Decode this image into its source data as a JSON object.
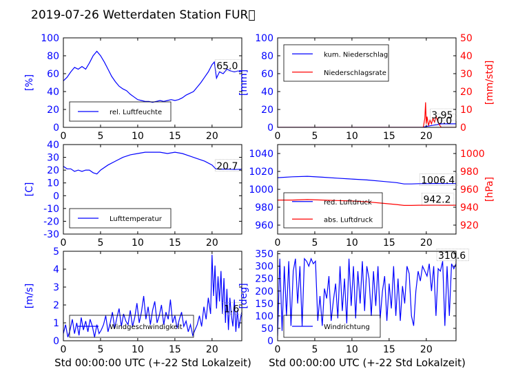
{
  "figure": {
    "title": "2019-07-26 Wetterdaten Station FUR\u0000",
    "xlabel": "Std 00:00:00 UTC (+-22 Std Lokalzeit)"
  },
  "colors": {
    "blue": "#0000ff",
    "red": "#ff0000",
    "axis": "#000000"
  },
  "chart_data": [
    {
      "type": "line",
      "panel": "humidity",
      "ylabel": "[%]",
      "xlim": [
        0,
        24
      ],
      "ylim": [
        0,
        100
      ],
      "xticks": [
        0,
        5,
        10,
        15,
        20
      ],
      "yticks": [
        0,
        20,
        40,
        60,
        80,
        100
      ],
      "legend": "lower-left",
      "annotations": [
        {
          "text": "65.0",
          "x": 20.5,
          "y": 65
        }
      ],
      "series": [
        {
          "name": "rel. Luftfeuchte",
          "color": "#0000ff",
          "x": [
            0,
            0.5,
            1,
            1.5,
            2,
            2.5,
            3,
            3.5,
            4,
            4.5,
            5,
            5.5,
            6,
            6.5,
            7,
            7.5,
            8,
            8.5,
            9,
            9.5,
            10,
            10.5,
            11,
            11.5,
            12,
            12.5,
            13,
            13.5,
            14,
            14.5,
            15,
            15.5,
            16,
            16.5,
            17,
            17.5,
            18,
            18.5,
            19,
            19.5,
            20,
            20.3,
            20.6,
            21,
            21.5,
            22,
            22.5,
            23,
            23.5,
            24
          ],
          "y": [
            52,
            56,
            62,
            67,
            65,
            68,
            65,
            72,
            80,
            85,
            80,
            73,
            65,
            57,
            51,
            46,
            43,
            41,
            37,
            34,
            31,
            30,
            29,
            29,
            28,
            29,
            30,
            29,
            30,
            31,
            30,
            31,
            33,
            36,
            38,
            40,
            45,
            50,
            56,
            62,
            70,
            73,
            55,
            62,
            60,
            65,
            63,
            62,
            63,
            62
          ]
        }
      ]
    },
    {
      "type": "line",
      "panel": "precipitation",
      "ylabel": "[mm]",
      "y2label": "[mm/std]",
      "xlim": [
        0,
        24
      ],
      "ylim": [
        0,
        100
      ],
      "y2lim": [
        0,
        50
      ],
      "xticks": [
        0,
        5,
        10,
        15,
        20
      ],
      "yticks": [
        0,
        20,
        40,
        60,
        80,
        100
      ],
      "y2ticks": [
        0,
        10,
        20,
        30,
        40,
        50
      ],
      "legend": "upper-left",
      "annotations": [
        {
          "text": "3.95",
          "x": 20.6,
          "y": 10
        },
        {
          "text": "0.0",
          "x": 21.3,
          "y": 4
        }
      ],
      "series": [
        {
          "name": "kum. Niederschlag",
          "color": "#0000ff",
          "axis": "left",
          "x": [
            0,
            19.5,
            20,
            21,
            22,
            23,
            24
          ],
          "y": [
            0,
            0,
            1,
            2.5,
            3.95,
            3.95,
            3.95
          ]
        },
        {
          "name": "Niederschlagsrate",
          "color": "#ff0000",
          "axis": "right",
          "x": [
            0,
            19.6,
            19.8,
            19.9,
            20.0,
            20.1,
            20.3,
            20.5,
            20.7,
            20.9,
            21.1,
            21.3,
            21.5,
            21.7,
            22,
            24
          ],
          "y": [
            0,
            0,
            5,
            14,
            2,
            6,
            1,
            4,
            2,
            5,
            3,
            6,
            4,
            2,
            0,
            0
          ]
        }
      ]
    },
    {
      "type": "line",
      "panel": "temperature",
      "ylabel": "[C]",
      "xlim": [
        0,
        24
      ],
      "ylim": [
        -30,
        40
      ],
      "xticks": [
        0,
        5,
        10,
        15,
        20
      ],
      "yticks": [
        -30,
        -20,
        -10,
        0,
        10,
        20,
        30,
        40
      ],
      "legend": "lower-left",
      "annotations": [
        {
          "text": "20.7",
          "x": 20.5,
          "y": 20.7
        }
      ],
      "series": [
        {
          "name": "Lufttemperatur",
          "color": "#0000ff",
          "x": [
            0,
            0.5,
            1,
            1.5,
            2,
            2.5,
            3,
            3.5,
            4,
            4.5,
            5,
            6,
            7,
            8,
            9,
            10,
            11,
            12,
            13,
            14,
            15,
            16,
            17,
            18,
            19,
            20,
            20.5,
            21,
            22,
            23,
            24
          ],
          "y": [
            23,
            21,
            21,
            19,
            20,
            19,
            20,
            20,
            18,
            17,
            20,
            24,
            27,
            30,
            32,
            33,
            34,
            34,
            34,
            33,
            34,
            33,
            31,
            29,
            27,
            24,
            21,
            20.7,
            20.8,
            20.5,
            20.7
          ]
        }
      ]
    },
    {
      "type": "line",
      "panel": "pressure",
      "ylabel": "",
      "y2label": "[hPa]",
      "xlim": [
        0,
        24
      ],
      "ylim": [
        950,
        1050
      ],
      "y2lim": [
        910,
        1010
      ],
      "xticks": [
        0,
        5,
        10,
        15,
        20
      ],
      "yticks": [
        960,
        980,
        1000,
        1020,
        1040
      ],
      "y2ticks": [
        920,
        940,
        960,
        980,
        1000
      ],
      "legend": "lower-left",
      "annotations": [
        {
          "text": "1006.4",
          "x": 19.2,
          "y": 1006.4
        },
        {
          "text": "942.2",
          "x": 19.5,
          "y": 985
        }
      ],
      "series": [
        {
          "name": "red. Luftdruck",
          "color": "#0000ff",
          "axis": "left",
          "x": [
            0,
            2,
            4,
            6,
            8,
            10,
            12,
            14,
            16,
            17,
            18,
            19,
            20,
            21,
            22,
            23,
            24
          ],
          "y": [
            1013,
            1014,
            1014.5,
            1013.5,
            1012.5,
            1011.5,
            1010.5,
            1009,
            1007.5,
            1006,
            1006,
            1006.3,
            1006.3,
            1006.5,
            1006.4,
            1006.4,
            1006.4
          ]
        },
        {
          "name": "abs. Luftdruck",
          "color": "#ff0000",
          "axis": "right",
          "x": [
            0,
            2,
            4,
            6,
            8,
            10,
            12,
            14,
            16,
            17,
            18,
            19,
            20,
            21,
            22,
            23,
            24
          ],
          "y": [
            948,
            948,
            948.5,
            948,
            947.5,
            947,
            946,
            944.5,
            943,
            942,
            942,
            942.2,
            942.2,
            942.3,
            942.2,
            942.2,
            942.2
          ]
        }
      ]
    },
    {
      "type": "line",
      "panel": "windspeed",
      "ylabel": "[m/s]",
      "xlim": [
        0,
        24
      ],
      "ylim": [
        0,
        5
      ],
      "xticks": [
        0,
        5,
        10,
        15,
        20
      ],
      "yticks": [
        0,
        1,
        2,
        3,
        4,
        5
      ],
      "legend": "lower-left",
      "annotations": [
        {
          "text": "1.6",
          "x": 21.5,
          "y": 1.6
        }
      ],
      "series": [
        {
          "name": "Windgeschwindigkeit",
          "color": "#0000ff",
          "x": [
            0,
            0.3,
            0.6,
            0.9,
            1.2,
            1.5,
            1.8,
            2.1,
            2.4,
            2.7,
            3,
            3.3,
            3.6,
            3.9,
            4.2,
            4.5,
            4.8,
            5.1,
            5.4,
            5.7,
            6,
            6.3,
            6.6,
            6.9,
            7.2,
            7.5,
            7.8,
            8.1,
            8.4,
            8.7,
            9,
            9.3,
            9.6,
            9.9,
            10.2,
            10.5,
            10.8,
            11.1,
            11.4,
            11.7,
            12,
            12.3,
            12.6,
            12.9,
            13.2,
            13.5,
            13.8,
            14.1,
            14.4,
            14.7,
            15,
            15.3,
            15.6,
            15.9,
            16.2,
            16.5,
            16.8,
            17.1,
            17.4,
            17.7,
            18,
            18.3,
            18.6,
            18.9,
            19.2,
            19.5,
            19.8,
            20,
            20.2,
            20.4,
            20.6,
            20.8,
            21,
            21.2,
            21.4,
            21.6,
            21.8,
            22,
            22.2,
            22.4,
            22.6,
            22.8,
            23,
            23.2,
            23.4,
            23.6,
            23.8,
            24
          ],
          "y": [
            0.4,
            0.9,
            0.2,
            0.6,
            1.2,
            0.4,
            1.0,
            0.3,
            1.3,
            0.6,
            1.1,
            0.5,
            1.2,
            0.8,
            0.2,
            0.9,
            0.4,
            0.6,
            0.9,
            1.4,
            0.5,
            1.0,
            1.6,
            0.7,
            1.3,
            1.8,
            0.8,
            1.5,
            1.1,
            0.9,
            1.7,
            0.8,
            1.3,
            2.1,
            1.0,
            1.6,
            2.5,
            1.2,
            1.9,
            0.9,
            1.7,
            2.2,
            1.0,
            1.4,
            2.0,
            0.9,
            1.6,
            1.2,
            2.3,
            1.0,
            1.4,
            0.7,
            1.2,
            1.6,
            0.8,
            1.1,
            0.5,
            0.9,
            0.3,
            0.6,
            0.9,
            1.4,
            0.8,
            1.9,
            1.2,
            2.4,
            1.5,
            4.8,
            2.5,
            4.2,
            1.8,
            3.6,
            2.2,
            3.9,
            1.5,
            3.5,
            1.0,
            2.9,
            0.6,
            2.4,
            1.4,
            0.8,
            2.3,
            0.5,
            1.7,
            0.7,
            1.2,
            1.6
          ]
        }
      ]
    },
    {
      "type": "line",
      "panel": "winddirection",
      "ylabel": "[deg]",
      "xlim": [
        0,
        24
      ],
      "ylim": [
        0,
        360
      ],
      "xticks": [
        0,
        5,
        10,
        15,
        20
      ],
      "yticks": [
        0,
        50,
        100,
        150,
        200,
        250,
        300,
        350
      ],
      "legend": "lower-left",
      "annotations": [
        {
          "text": "310.6",
          "x": 21.5,
          "y": 330
        }
      ],
      "series": [
        {
          "name": "Windrichtung",
          "color": "#0000ff",
          "x": [
            0,
            0.3,
            0.6,
            0.9,
            1.2,
            1.5,
            1.8,
            2.1,
            2.4,
            2.7,
            3,
            3.3,
            3.6,
            3.9,
            4.2,
            4.5,
            4.8,
            5.1,
            5.4,
            5.7,
            6,
            6.3,
            6.6,
            6.9,
            7.2,
            7.5,
            7.8,
            8.1,
            8.4,
            8.7,
            9,
            9.3,
            9.6,
            9.9,
            10.2,
            10.5,
            10.8,
            11.1,
            11.4,
            11.7,
            12,
            12.3,
            12.6,
            12.9,
            13.2,
            13.5,
            13.8,
            14.1,
            14.4,
            14.7,
            15,
            15.3,
            15.6,
            15.9,
            16.2,
            16.5,
            16.8,
            17.1,
            17.4,
            17.7,
            18,
            18.3,
            18.6,
            18.9,
            19.2,
            19.5,
            19.8,
            20.1,
            20.4,
            20.7,
            21,
            21.3,
            21.6,
            21.9,
            22.2,
            22.5,
            22.8,
            23.1,
            23.4,
            23.7,
            24
          ],
          "y": [
            20,
            330,
            40,
            300,
            100,
            320,
            60,
            280,
            330,
            150,
            300,
            60,
            330,
            320,
            300,
            330,
            310,
            320,
            80,
            180,
            60,
            210,
            170,
            260,
            80,
            160,
            230,
            90,
            300,
            120,
            250,
            70,
            330,
            140,
            300,
            90,
            280,
            150,
            320,
            120,
            300,
            250,
            100,
            280,
            140,
            300,
            90,
            200,
            260,
            80,
            230,
            130,
            300,
            100,
            250,
            80,
            220,
            150,
            300,
            270,
            100,
            60,
            200,
            280,
            240,
            300,
            280,
            260,
            310,
            200,
            300,
            100,
            290,
            280,
            320,
            60,
            300,
            100,
            310,
            290,
            310
          ]
        }
      ]
    }
  ]
}
